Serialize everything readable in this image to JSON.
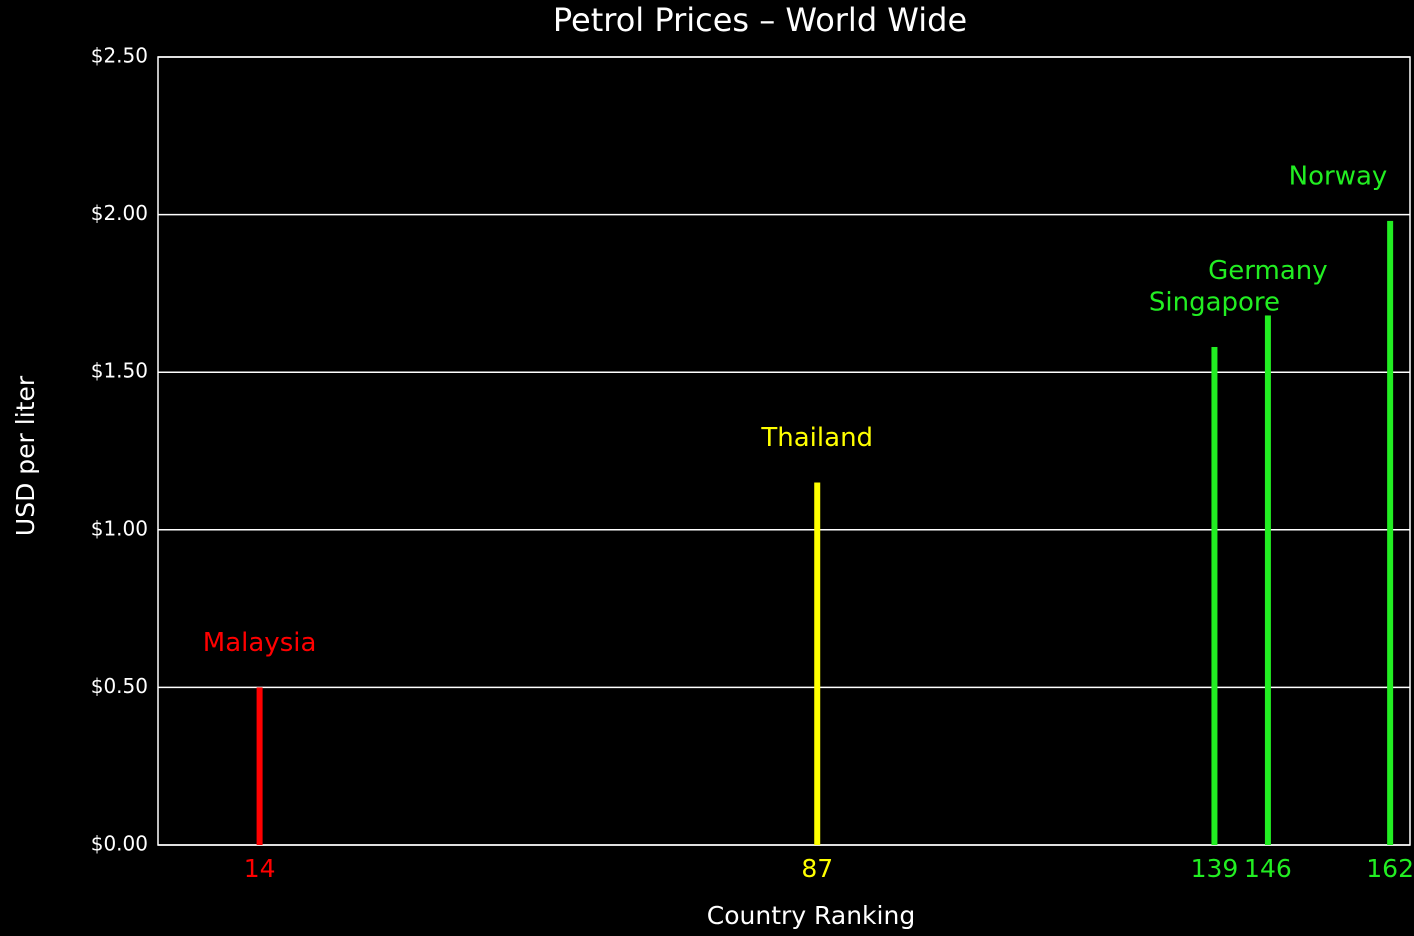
{
  "chart_data": {
    "type": "bar",
    "title": "Petrol Prices – World Wide",
    "x_label": "Country Ranking",
    "y_label": "USD per liter",
    "x": [
      14,
      87,
      139,
      146,
      162
    ],
    "values": [
      0.5,
      1.15,
      1.58,
      1.68,
      1.98
    ],
    "labels": [
      "Malaysia",
      "Thailand",
      "Singapore",
      "Germany",
      "Norway"
    ],
    "colors": [
      "#ff0000",
      "#ffff00",
      "#22ee22",
      "#22ee22",
      "#22ee22"
    ],
    "xlim": [
      0.7,
      164.6
    ],
    "ylim": [
      0,
      2.5
    ],
    "yticks": [
      {
        "value": 0,
        "label": "$0.00"
      },
      {
        "value": 0.5,
        "label": "$0.50"
      },
      {
        "value": 1.0,
        "label": "$1.00"
      },
      {
        "value": 1.5,
        "label": "$1.50"
      },
      {
        "value": 2.0,
        "label": "$2.00"
      },
      {
        "value": 2.5,
        "label": "$2.50"
      }
    ],
    "grid": true
  }
}
